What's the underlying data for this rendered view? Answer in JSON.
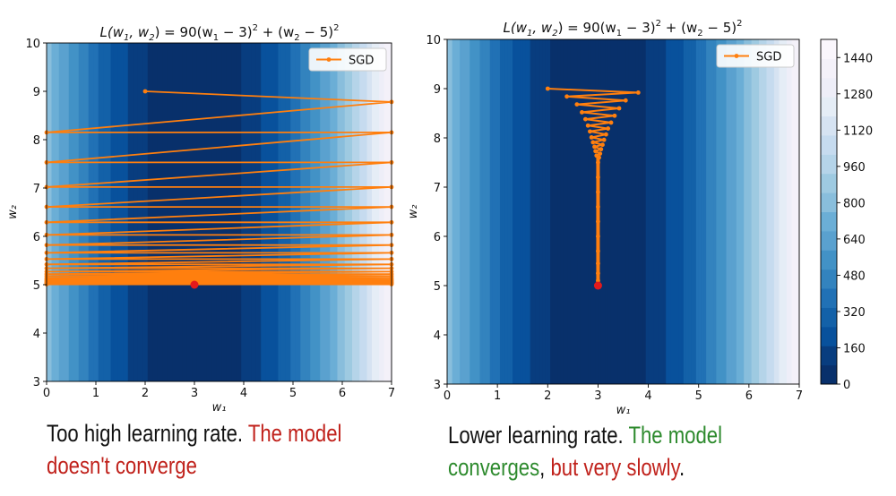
{
  "chart_data": [
    {
      "type": "contour",
      "title": "L(w₁, w₂) = 90(w₁ − 3)² + (w₂ − 5)²",
      "title_parts": {
        "lhs": "L(w",
        "sub1": "1",
        "mid1": ", w",
        "sub2": "2",
        "mid2": ") = 90(w",
        "sub3": "1",
        "mid3": " − 3)",
        "sup1": "2",
        "mid4": " + (w",
        "sub4": "2",
        "mid5": " − 5)",
        "sup2": "2"
      },
      "xlabel": "w₁",
      "ylabel": "w₂",
      "xlim": [
        0,
        7
      ],
      "ylim": [
        3,
        10
      ],
      "xticks": [
        0,
        1,
        2,
        3,
        4,
        5,
        6,
        7
      ],
      "yticks": [
        3,
        4,
        5,
        6,
        7,
        8,
        9,
        10
      ],
      "legend": "SGD",
      "legend_position": "top-right",
      "minimum": [
        3,
        5
      ],
      "learning_rate": "too high",
      "sgd_path": [
        [
          2.0,
          9.0
        ],
        [
          7.0,
          8.78
        ],
        [
          0,
          8.15
        ],
        [
          7.0,
          8.15
        ],
        [
          0,
          7.53
        ],
        [
          7.0,
          7.53
        ],
        [
          0,
          7.02
        ],
        [
          7.0,
          7.02
        ],
        [
          0,
          6.61
        ],
        [
          7.0,
          6.61
        ],
        [
          0,
          6.29
        ],
        [
          7.0,
          6.29
        ],
        [
          0,
          6.03
        ],
        [
          7.0,
          6.03
        ],
        [
          0,
          5.82
        ],
        [
          7.0,
          5.82
        ],
        [
          0,
          5.66
        ],
        [
          7.0,
          5.66
        ],
        [
          0,
          5.53
        ],
        [
          7.0,
          5.53
        ],
        [
          0,
          5.42
        ],
        [
          7.0,
          5.42
        ],
        [
          0,
          5.34
        ],
        [
          7.0,
          5.34
        ],
        [
          0,
          5.27
        ],
        [
          7.0,
          5.27
        ],
        [
          0,
          5.22
        ],
        [
          7.0,
          5.22
        ],
        [
          0,
          5.18
        ],
        [
          7.0,
          5.18
        ],
        [
          0,
          5.14
        ],
        [
          7.0,
          5.14
        ],
        [
          0,
          5.11
        ],
        [
          7.0,
          5.11
        ],
        [
          0,
          5.09
        ],
        [
          7.0,
          5.09
        ],
        [
          0,
          5.07
        ],
        [
          7.0,
          5.07
        ],
        [
          0,
          5.05
        ],
        [
          7.0,
          5.05
        ],
        [
          0,
          5.04
        ],
        [
          7.0,
          5.04
        ],
        [
          0,
          5.03
        ],
        [
          7.0,
          5.03
        ],
        [
          0,
          5.02
        ],
        [
          7.0,
          5.02
        ],
        [
          0,
          5.01
        ],
        [
          7.0,
          5.01
        ]
      ]
    },
    {
      "type": "contour",
      "title": "L(w₁, w₂) = 90(w₁ − 3)² + (w₂ − 5)²",
      "title_parts": {
        "lhs": "L(w",
        "sub1": "1",
        "mid1": ", w",
        "sub2": "2",
        "mid2": ") = 90(w",
        "sub3": "1",
        "mid3": " − 3)",
        "sup1": "2",
        "mid4": " + (w",
        "sub4": "2",
        "mid5": " − 5)",
        "sup2": "2"
      },
      "xlabel": "w₁",
      "ylabel": "w₂",
      "xlim": [
        0,
        7
      ],
      "ylim": [
        3,
        10
      ],
      "xticks": [
        0,
        1,
        2,
        3,
        4,
        5,
        6,
        7
      ],
      "yticks": [
        3,
        4,
        5,
        6,
        7,
        8,
        9,
        10
      ],
      "legend": "SGD",
      "legend_position": "top-right",
      "minimum": [
        3,
        5
      ],
      "learning_rate": "lower",
      "sgd_path": [
        [
          2.0,
          9.0
        ],
        [
          3.8,
          8.92
        ],
        [
          2.38,
          8.84
        ],
        [
          3.55,
          8.76
        ],
        [
          2.58,
          8.68
        ],
        [
          3.42,
          8.6
        ],
        [
          2.68,
          8.52
        ],
        [
          3.33,
          8.45
        ],
        [
          2.75,
          8.38
        ],
        [
          3.26,
          8.31
        ],
        [
          2.8,
          8.25
        ],
        [
          3.2,
          8.19
        ],
        [
          2.84,
          8.13
        ],
        [
          3.16,
          8.07
        ],
        [
          2.87,
          8.01
        ],
        [
          3.12,
          7.96
        ],
        [
          2.9,
          7.91
        ],
        [
          3.09,
          7.86
        ],
        [
          2.93,
          7.82
        ],
        [
          3.06,
          7.77
        ],
        [
          2.95,
          7.73
        ],
        [
          3.04,
          7.68
        ],
        [
          2.97,
          7.64
        ],
        [
          3.02,
          7.6
        ],
        [
          3.0,
          7.5
        ],
        [
          3.0,
          7.2
        ],
        [
          3.0,
          6.9
        ],
        [
          3.0,
          6.6
        ],
        [
          3.0,
          6.3
        ],
        [
          3.0,
          6.0
        ],
        [
          3.0,
          5.7
        ],
        [
          3.0,
          5.45
        ],
        [
          3.0,
          5.25
        ],
        [
          3.0,
          5.1
        ],
        [
          3.0,
          5.0
        ]
      ]
    }
  ],
  "colorbar": {
    "ticks": [
      0,
      160,
      320,
      480,
      640,
      800,
      960,
      1120,
      1280,
      1440
    ],
    "range": [
      0,
      1520
    ],
    "levels": [
      "#08306b",
      "#083d7f",
      "#08519c",
      "#1361a8",
      "#2171b5",
      "#3383be",
      "#4292c6",
      "#5aa1cf",
      "#6baed6",
      "#89bedc",
      "#9ecae1",
      "#b5d4e9",
      "#c6dbef",
      "#d6e3f2",
      "#e5edf6",
      "#eeeef8",
      "#f4f1f9",
      "#faf6fc"
    ]
  },
  "colors": {
    "path": "#ff7f0e",
    "minimum": "#e31a1c"
  },
  "captions": {
    "left": {
      "line1_plain": "Too high learning rate. ",
      "line1_red": "The model",
      "line2_red": "doesn't converge"
    },
    "right": {
      "line1_plain": "Lower learning rate. ",
      "line1_green": "The model",
      "line2_green": "converges",
      "line2_comma": ", ",
      "line2_red": "but very slowly",
      "line2_end": "."
    }
  }
}
